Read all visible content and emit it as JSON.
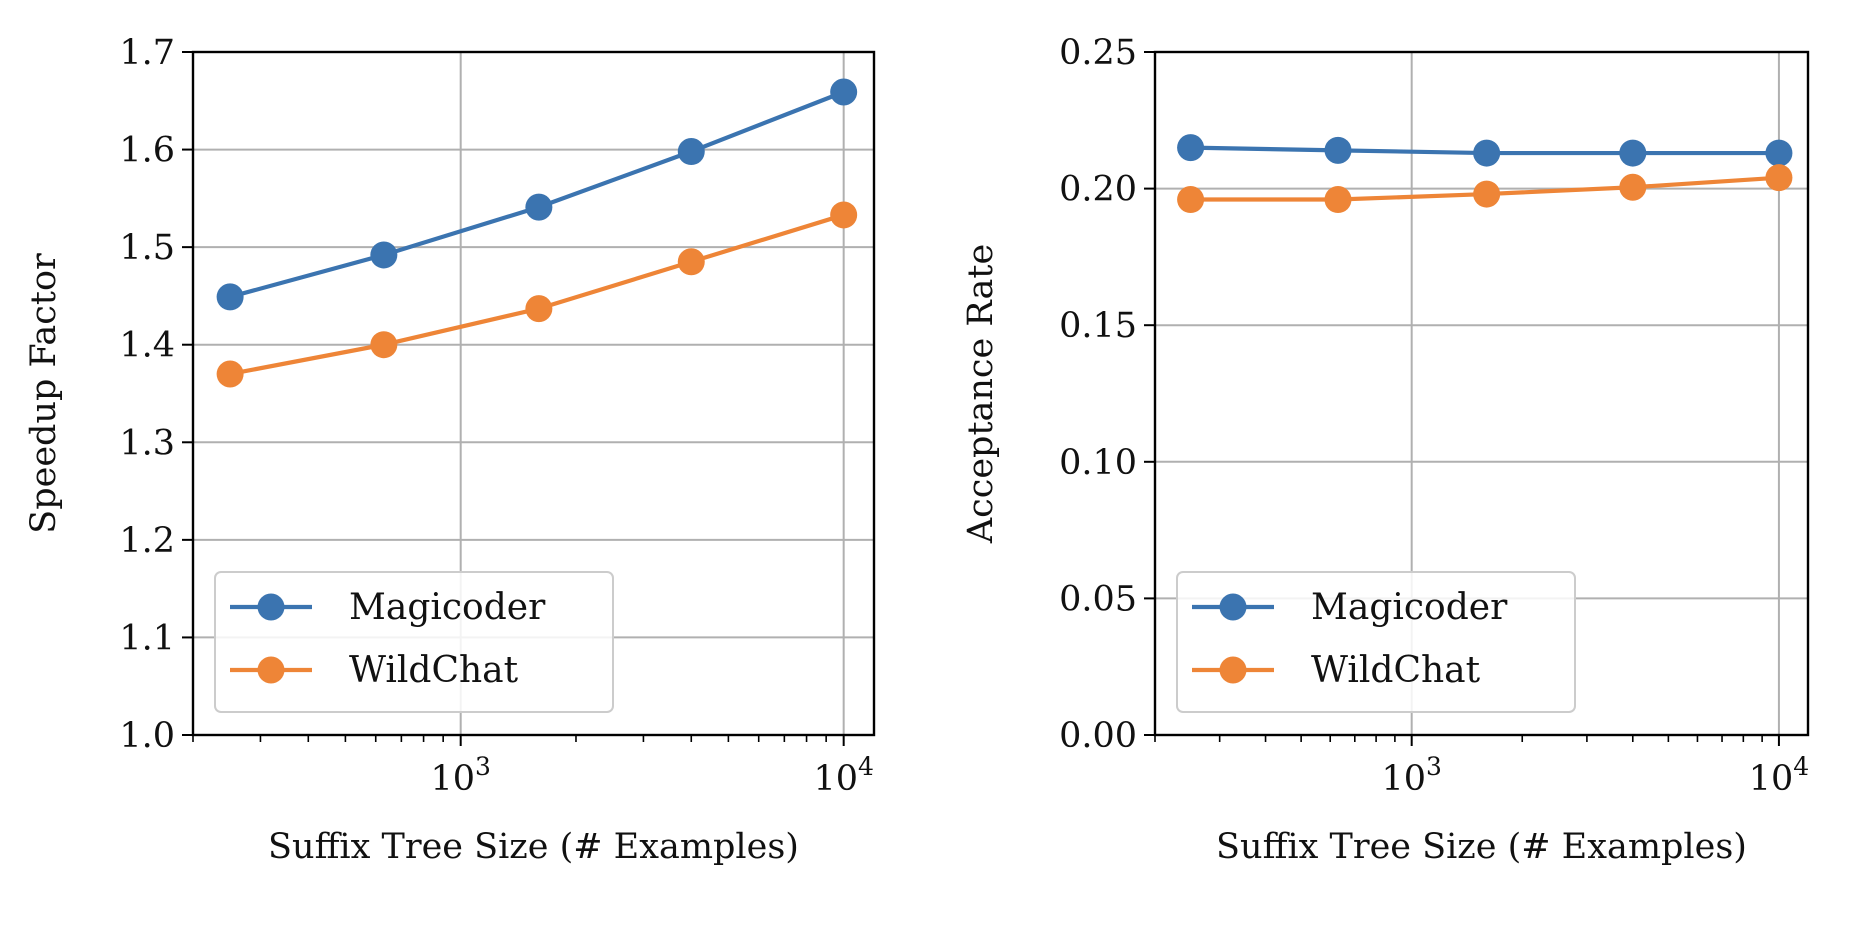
{
  "chart_data": [
    {
      "type": "line",
      "xscale": "log",
      "xlim": [
        200,
        12000
      ],
      "ylim": [
        1.0,
        1.7
      ],
      "xticks": [
        1000,
        10000
      ],
      "xtick_labels": [
        {
          "base": "10",
          "exp": "3"
        },
        {
          "base": "10",
          "exp": "4"
        }
      ],
      "yticks": [
        1.0,
        1.1,
        1.2,
        1.3,
        1.4,
        1.5,
        1.6,
        1.7
      ],
      "ytick_labels": [
        "1.0",
        "1.1",
        "1.2",
        "1.3",
        "1.4",
        "1.5",
        "1.6",
        "1.7"
      ],
      "xlabel": "Suffix Tree Size (# Examples)",
      "ylabel": "Speedup Factor",
      "grid": true,
      "legend_position": "lower-left",
      "x": [
        250,
        630,
        1600,
        4000,
        10000
      ],
      "series": [
        {
          "name": "Magicoder",
          "color": "#3b74b0",
          "values": [
            1.449,
            1.492,
            1.541,
            1.598,
            1.659
          ]
        },
        {
          "name": "WildChat",
          "color": "#ee8537",
          "values": [
            1.37,
            1.4,
            1.437,
            1.485,
            1.533
          ]
        }
      ]
    },
    {
      "type": "line",
      "xscale": "log",
      "xlim": [
        200,
        12000
      ],
      "ylim": [
        0.0,
        0.25
      ],
      "xticks": [
        1000,
        10000
      ],
      "xtick_labels": [
        {
          "base": "10",
          "exp": "3"
        },
        {
          "base": "10",
          "exp": "4"
        }
      ],
      "yticks": [
        0.0,
        0.05,
        0.1,
        0.15,
        0.2,
        0.25
      ],
      "ytick_labels": [
        "0.00",
        "0.05",
        "0.10",
        "0.15",
        "0.20",
        "0.25"
      ],
      "xlabel": "Suffix Tree Size (# Examples)",
      "ylabel": "Acceptance Rate",
      "grid": true,
      "legend_position": "lower-left",
      "x": [
        250,
        630,
        1600,
        4000,
        10000
      ],
      "series": [
        {
          "name": "Magicoder",
          "color": "#3b74b0",
          "values": [
            0.215,
            0.214,
            0.213,
            0.213,
            0.213
          ]
        },
        {
          "name": "WildChat",
          "color": "#ee8537",
          "values": [
            0.196,
            0.196,
            0.198,
            0.2005,
            0.204
          ]
        }
      ]
    }
  ]
}
